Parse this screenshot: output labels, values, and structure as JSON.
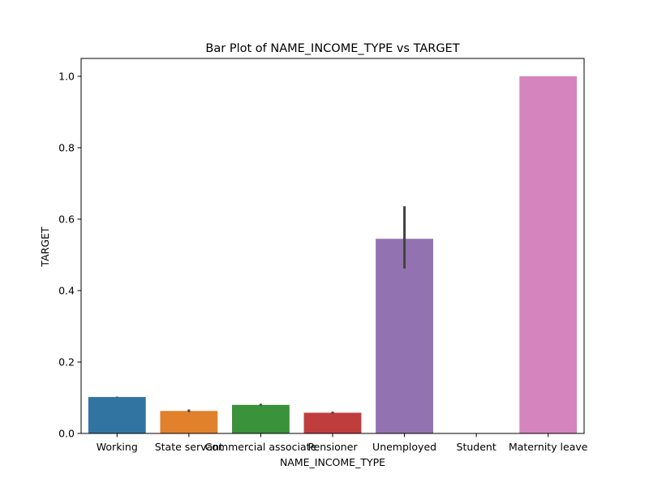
{
  "chart_data": {
    "type": "bar",
    "title": "Bar Plot of NAME_INCOME_TYPE vs TARGET",
    "xlabel": "NAME_INCOME_TYPE",
    "ylabel": "TARGET",
    "ylim": [
      0,
      1.05
    ],
    "yticks": [
      "0.0",
      "0.2",
      "0.4",
      "0.6",
      "0.8",
      "1.0"
    ],
    "grid": false,
    "legend": "none",
    "categories": [
      "Working",
      "State servant",
      "Commercial associate",
      "Pensioner",
      "Unemployed",
      "Student",
      "Maternity leave"
    ],
    "values": [
      0.102,
      0.063,
      0.08,
      0.058,
      0.545,
      0.0,
      1.0
    ],
    "error_bars": [
      [
        0.101,
        0.103
      ],
      [
        0.06,
        0.067
      ],
      [
        0.078,
        0.083
      ],
      [
        0.056,
        0.061
      ],
      [
        0.462,
        0.636
      ],
      null,
      null
    ],
    "colors": [
      "#3274a1",
      "#e1812c",
      "#3a923a",
      "#c03d3e",
      "#9372b2",
      "#845b53",
      "#d684bd"
    ]
  }
}
